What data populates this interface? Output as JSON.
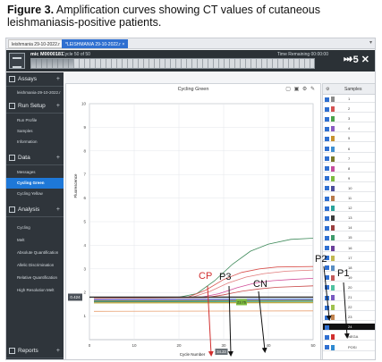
{
  "figure": {
    "label": "Figure 3.",
    "caption": "Amplification curves showing CT values of cutaneous leishmaniasis-positive patients."
  },
  "tabs": [
    {
      "label": "leishmania 29-10-2022.r"
    },
    {
      "label": "*LEISHMANIA 29-10-2022.r",
      "close": "×"
    }
  ],
  "run": {
    "name": "mic M0000181",
    "cycle_text": "Cycle 50 of 50",
    "time_text": "Time Remaining 00:00:00",
    "progress": 0.15,
    "skip_label": "⏭",
    "plus_label": "+5 ✕"
  },
  "sidebar": {
    "sections": [
      {
        "label": "Assays",
        "plus": "+"
      },
      {
        "label": "Run Setup",
        "plus": "+"
      },
      {
        "label": "Data",
        "plus": "+"
      },
      {
        "label": "Analysis",
        "plus": "+"
      },
      {
        "label": "Reports",
        "plus": "+"
      }
    ],
    "assay_item": "leishmania-29-10-2022.r",
    "run_items": [
      "Run Profile",
      "Samples",
      "Information"
    ],
    "data_items": [
      "Messages",
      "Cycling Green",
      "Cycling Yellow"
    ],
    "analysis_items": [
      "Cycling",
      "Melt",
      "Absolute Quantification",
      "Allelic Discrimination",
      "Relative Quantification",
      "High Resolution Melt"
    ]
  },
  "panel": {
    "title": "Cycling Green",
    "tools": "▢ ▣ ⚙ ✎"
  },
  "samples": {
    "title": "Samples",
    "gear": "⚙",
    "rows": [
      "1",
      "2",
      "3",
      "4",
      "5",
      "6",
      "7",
      "8",
      "9",
      "10",
      "11",
      "12",
      "13",
      "14",
      "15",
      "16",
      "17",
      "18",
      "19",
      "20",
      "21",
      "22",
      "23",
      "24",
      "NEGA",
      "POSI"
    ],
    "selected_index": 23,
    "colors": [
      "#8a8a8a",
      "#d45252",
      "#4aa34a",
      "#8a5bc2",
      "#c7932f",
      "#3f8fd1",
      "#7a7a2a",
      "#c44c9d",
      "#7dbb3f",
      "#4d4d9b",
      "#b87a4a",
      "#2aa39a",
      "#3d3d3d",
      "#9b3f3f",
      "#3f9b6b",
      "#6b3f9b",
      "#c2b84f",
      "#5a8ec2",
      "#c25a5a",
      "#4fc2a0",
      "#7a5ac2",
      "#a0c24f",
      "#c2844f",
      "#111111",
      "#d12f2f",
      "#2f8ad1"
    ]
  },
  "chart_data": {
    "type": "line",
    "xlim": [
      0,
      50
    ],
    "ylim": [
      0,
      10
    ],
    "x_ticks": [
      0,
      10,
      20,
      30,
      40,
      50
    ],
    "y_ticks": [
      1,
      2,
      3,
      4,
      5,
      6,
      7,
      8,
      9,
      10
    ],
    "xlabel": "Cycle Number",
    "ylabel": "Fluorescence",
    "threshold": 1.8,
    "threshold_label": "0.424",
    "x_marker_label": "34.23",
    "ct_marker_label": "23.76",
    "series": [
      {
        "color": "#3e8a5a",
        "points": [
          [
            1,
            1.8
          ],
          [
            20,
            1.8
          ],
          [
            24,
            1.95
          ],
          [
            28,
            2.5
          ],
          [
            32,
            3.2
          ],
          [
            36,
            3.75
          ],
          [
            40,
            4.05
          ],
          [
            45,
            4.25
          ],
          [
            50,
            4.3
          ]
        ]
      },
      {
        "color": "#d9534f",
        "points": [
          [
            1,
            1.8
          ],
          [
            22,
            1.8
          ],
          [
            26,
            2.1
          ],
          [
            30,
            2.55
          ],
          [
            34,
            2.85
          ],
          [
            38,
            3.0
          ],
          [
            42,
            3.08
          ],
          [
            50,
            3.1
          ]
        ]
      },
      {
        "color": "#e07a7a",
        "points": [
          [
            1,
            1.8
          ],
          [
            23,
            1.8
          ],
          [
            27,
            2.05
          ],
          [
            31,
            2.4
          ],
          [
            35,
            2.65
          ],
          [
            39,
            2.8
          ],
          [
            44,
            2.9
          ],
          [
            50,
            2.95
          ]
        ]
      },
      {
        "color": "#d24f9a",
        "points": [
          [
            1,
            1.8
          ],
          [
            25,
            1.8
          ],
          [
            29,
            1.95
          ],
          [
            33,
            2.2
          ],
          [
            37,
            2.4
          ],
          [
            41,
            2.5
          ],
          [
            45,
            2.55
          ],
          [
            50,
            2.6
          ]
        ]
      },
      {
        "color": "#c94a4a",
        "points": [
          [
            1,
            1.75
          ],
          [
            26,
            1.78
          ],
          [
            30,
            1.9
          ],
          [
            34,
            2.05
          ],
          [
            38,
            2.15
          ],
          [
            42,
            2.22
          ],
          [
            50,
            2.28
          ]
        ]
      },
      {
        "color": "#2f6fd0",
        "points": [
          [
            1,
            1.7
          ],
          [
            50,
            1.72
          ]
        ]
      },
      {
        "color": "#8a5bc2",
        "points": [
          [
            1,
            1.68
          ],
          [
            50,
            1.69
          ]
        ]
      },
      {
        "color": "#7dbb3f",
        "points": [
          [
            1,
            1.65
          ],
          [
            50,
            1.66
          ]
        ]
      },
      {
        "color": "#555555",
        "points": [
          [
            1,
            1.62
          ],
          [
            50,
            1.63
          ]
        ]
      },
      {
        "color": "#3fa38f",
        "points": [
          [
            1,
            1.6
          ],
          [
            50,
            1.62
          ]
        ]
      },
      {
        "color": "#c7932f",
        "points": [
          [
            1,
            1.57
          ],
          [
            50,
            1.58
          ]
        ]
      },
      {
        "color": "#c2b84f",
        "points": [
          [
            1,
            1.55
          ],
          [
            50,
            1.56
          ]
        ]
      },
      {
        "color": "#e8a070",
        "points": [
          [
            1,
            1.2
          ],
          [
            50,
            1.22
          ]
        ]
      }
    ]
  },
  "annotations": {
    "cp": "CP",
    "p3": "P3",
    "cn": "CN",
    "p2": "P2",
    "p1": "P1"
  }
}
